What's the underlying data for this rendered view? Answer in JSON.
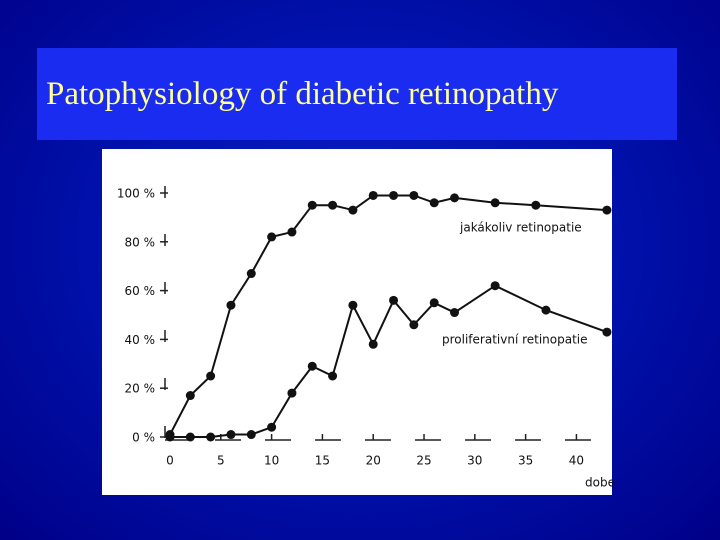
{
  "title": "Patophysiology of diabetic retinopathy",
  "chart_data": {
    "type": "line",
    "x_label": "dobe",
    "xlim": [
      0,
      43.5
    ],
    "ylim": [
      0,
      100
    ],
    "xticks": [
      0,
      5,
      10,
      15,
      20,
      25,
      30,
      35,
      40
    ],
    "yticks": [
      {
        "value": 0,
        "label": "0 %"
      },
      {
        "value": 20,
        "label": "20 %"
      },
      {
        "value": 40,
        "label": "40 %"
      },
      {
        "value": 60,
        "label": "60 %"
      },
      {
        "value": 80,
        "label": "80 %"
      },
      {
        "value": 100,
        "label": "100 %"
      }
    ],
    "series": [
      {
        "name": "jakákoliv retinopatie",
        "color": "#111111",
        "x": [
          0,
          2,
          4,
          6,
          8,
          10,
          12,
          14,
          16,
          18,
          20,
          22,
          24,
          26,
          28,
          32,
          36,
          43
        ],
        "values": [
          1,
          17,
          25,
          54,
          67,
          82,
          84,
          95,
          95,
          93,
          99,
          99,
          99,
          96,
          98,
          96,
          95,
          93
        ]
      },
      {
        "name": "proliferativní retinopatie",
        "color": "#111111",
        "x": [
          0,
          2,
          4,
          6,
          8,
          10,
          12,
          14,
          16,
          18,
          20,
          22,
          24,
          26,
          28,
          32,
          37,
          43
        ],
        "values": [
          0,
          0,
          0,
          1,
          1,
          4,
          18,
          29,
          25,
          54,
          38,
          56,
          46,
          55,
          51,
          62,
          52,
          43
        ]
      }
    ]
  }
}
